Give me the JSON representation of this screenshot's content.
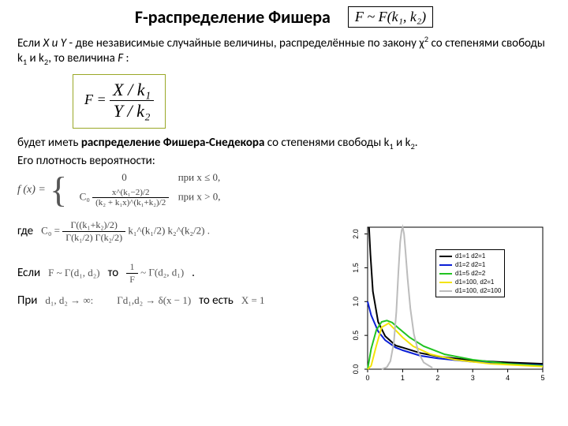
{
  "title": "F-распределение Фишера",
  "titleFormula": "F ~ F(k₁, k₂)",
  "para1_a": "Если ",
  "para1_XY": "X и Y",
  "para1_b": " - две независимые случайные величины, распределённые по закону χ",
  "para1_c": " со степенями свободы k",
  "para1_d": " и k",
  "para1_e": ", то величина ",
  "para1_F": "F",
  "para1_end": " :",
  "bigFrac_left": "F = ",
  "bigFrac_num": "X / k₁",
  "bigFrac_den": "Y / k₂",
  "para2_a": "будет иметь  ",
  "para2_b": "распределение Фишера-Снедекора",
  "para2_c": "  со степенями свободы k",
  "para2_d": " и k",
  "para2_e": ".",
  "para3": "Его плотность вероятности:",
  "density_lead": "f (x) =",
  "density_case0_expr": "0",
  "density_case0_cond": "при  x ≤ 0,",
  "density_case_num": "x^(k₁−2)/2",
  "density_case_den": "(k₂ + k₁x)^(k₁+k₂)/2",
  "density_case_cond": "при  x > 0,",
  "density_C": "C₀",
  "where_label": "где",
  "const_lead": "C₀ = ",
  "const_num": "Γ((k₁+k₂)/2)",
  "const_den": "Γ(k₁/2) Γ(k₂/2)",
  "const_tail1": " k₁^(k₁/2)",
  "const_tail2": " k₂^(k₂/2)",
  "if_label": "Если",
  "if_math1": "F ~ Γ(d₁, d₂)",
  "if_then": "то",
  "if_math_frac_num": "1",
  "if_math_frac_den": "F",
  "if_math2": " ~ Γ(d₂, d₁)",
  "if_end": ".",
  "pri_label": "При",
  "pri_math1": "d₁, d₂ → ∞:",
  "pri_math2": "Γd₁,d₂ → δ(x − 1)",
  "pri_then": "то есть",
  "pri_math3": "X = 1",
  "chart": {
    "background": "#ffffff",
    "axis_color": "#000000",
    "tick_fontsize": 9,
    "xlim": [
      0,
      5
    ],
    "ylim": [
      0,
      2.1
    ],
    "xticks": [
      0,
      1,
      2,
      3,
      4,
      5
    ],
    "yticks": [
      0.0,
      0.5,
      1.0,
      1.5,
      2.0
    ],
    "line_width": 2,
    "series": [
      {
        "label": "d1=1   d2=1",
        "color": "#000000",
        "x": [
          0.04,
          0.08,
          0.15,
          0.3,
          0.5,
          0.8,
          1.0,
          1.5,
          2.0,
          3.0,
          4.0,
          5.0
        ],
        "y": [
          2.1,
          1.7,
          1.15,
          0.7,
          0.49,
          0.35,
          0.32,
          0.24,
          0.19,
          0.13,
          0.1,
          0.08
        ]
      },
      {
        "label": "d1=2   d2=1",
        "color": "#0b1fd6",
        "x": [
          0.0,
          0.1,
          0.3,
          0.5,
          0.8,
          1.0,
          1.5,
          2.0,
          3.0,
          4.0,
          5.0
        ],
        "y": [
          1.0,
          0.8,
          0.56,
          0.43,
          0.32,
          0.28,
          0.2,
          0.16,
          0.11,
          0.08,
          0.06
        ]
      },
      {
        "label": "d1=5   d2=2",
        "color": "#21c321",
        "x": [
          0.0,
          0.1,
          0.25,
          0.4,
          0.55,
          0.7,
          0.9,
          1.2,
          1.6,
          2.2,
          3.0,
          4.0,
          5.0
        ],
        "y": [
          0.0,
          0.3,
          0.58,
          0.7,
          0.72,
          0.69,
          0.6,
          0.47,
          0.34,
          0.22,
          0.14,
          0.08,
          0.05
        ]
      },
      {
        "label": "d1=100, d2=1",
        "color": "#f3e40a",
        "x": [
          0.0,
          0.1,
          0.25,
          0.4,
          0.6,
          0.85,
          1.0,
          1.3,
          1.8,
          2.5,
          3.5,
          5.0
        ],
        "y": [
          0.0,
          0.05,
          0.35,
          0.62,
          0.68,
          0.55,
          0.47,
          0.34,
          0.22,
          0.14,
          0.08,
          0.04
        ]
      },
      {
        "label": "d1=100, d2=100",
        "color": "#bcbcbc",
        "x": [
          0.4,
          0.55,
          0.65,
          0.75,
          0.82,
          0.88,
          0.93,
          0.97,
          1.0,
          1.04,
          1.08,
          1.14,
          1.22,
          1.32,
          1.45,
          1.6,
          1.85
        ],
        "y": [
          0.0,
          0.03,
          0.12,
          0.4,
          0.85,
          1.45,
          1.88,
          2.05,
          2.1,
          2.0,
          1.75,
          1.35,
          0.9,
          0.52,
          0.25,
          0.1,
          0.02
        ]
      }
    ]
  }
}
